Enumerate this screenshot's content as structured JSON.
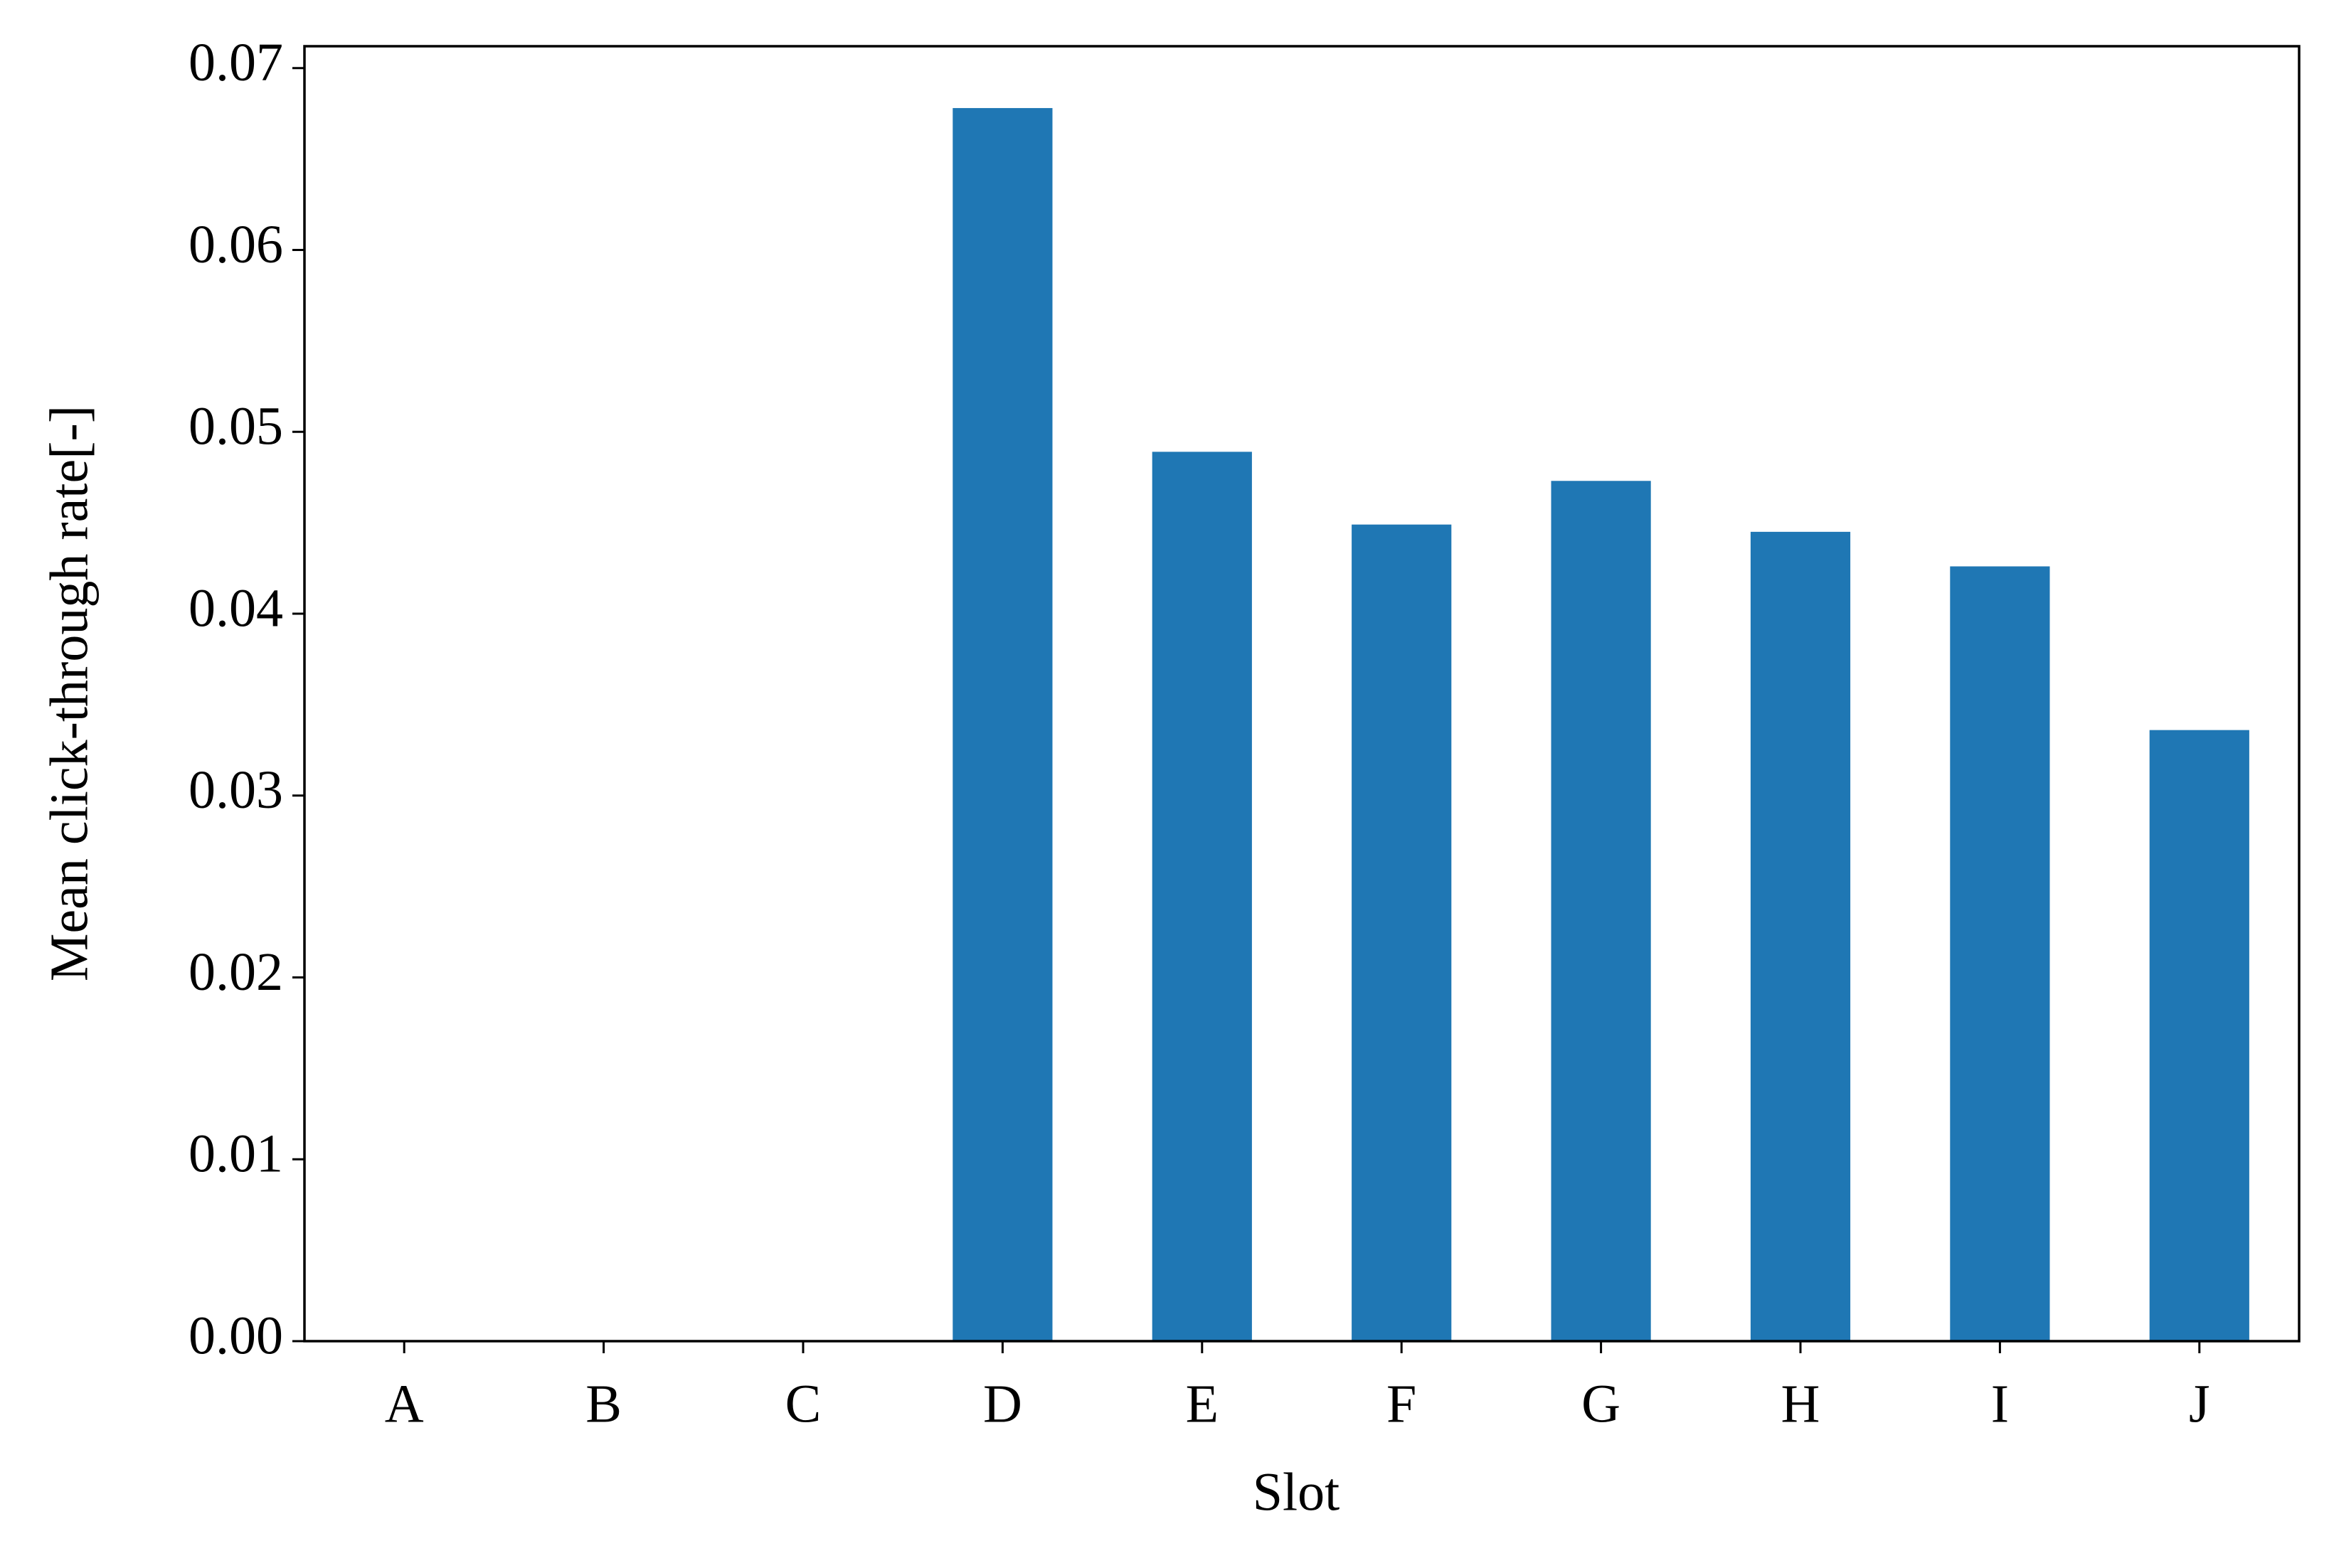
{
  "chart_data": {
    "type": "bar",
    "x_label": "Slot",
    "y_label": "Mean click-through rate[-]",
    "categories": [
      "A",
      "B",
      "C",
      "D",
      "E",
      "F",
      "G",
      "H",
      "I",
      "J"
    ],
    "values": [
      0,
      0,
      0,
      0.0678,
      0.0489,
      0.0449,
      0.0473,
      0.0445,
      0.0426,
      0.0336
    ],
    "color": "#1f77b4",
    "ylim": [
      0,
      0.0712
    ],
    "yticks": [
      {
        "value": 0,
        "label": "0.00"
      },
      0.01,
      0.02,
      0.03,
      0.04,
      0.05,
      0.06,
      0.07
    ],
    "grid": false
  }
}
